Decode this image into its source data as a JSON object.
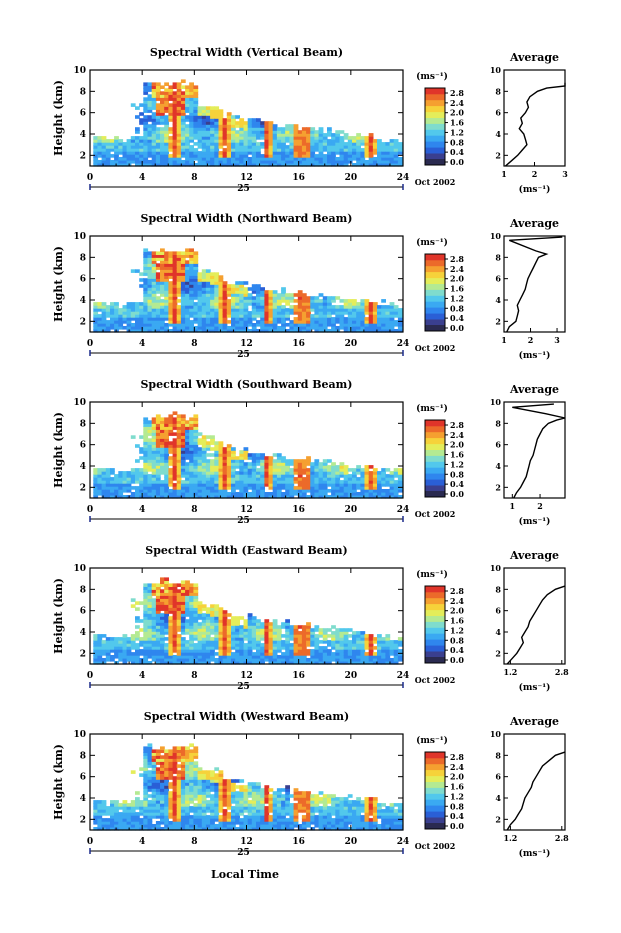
{
  "figure": {
    "x_axis_label": "Local Time",
    "colorbar_unit": "(ms⁻¹)",
    "avg_title": "Average",
    "avg_unit": "(ms⁻¹)",
    "date_label": "Oct 2002",
    "day_label": "25",
    "y_axis_label": "Height (km)"
  },
  "colorbar_ticks": [
    "0.0",
    "0.4",
    "0.8",
    "1.2",
    "1.6",
    "2.0",
    "2.4",
    "2.8"
  ],
  "colormap": [
    "#3a3f8f",
    "#2a5fd6",
    "#2f86ee",
    "#3aa9f2",
    "#52c8ec",
    "#7fdccd",
    "#b4ea92",
    "#e4ed5a",
    "#f6d23a",
    "#f5a030",
    "#ec6a2a",
    "#e0352a"
  ],
  "chart_data": [
    {
      "type": "heatmap",
      "title": "Spectral Width (Vertical Beam)",
      "xlabel": "",
      "ylabel": "Height (km)",
      "xlim": [
        0,
        24
      ],
      "ylim": [
        1,
        10
      ],
      "x_ticks": [
        0,
        4,
        8,
        12,
        16,
        20,
        24
      ],
      "y_ticks": [
        2,
        4,
        6,
        8,
        10
      ],
      "colorbar": {
        "min": 0.0,
        "max": 3.0,
        "ticks": [
          0.0,
          0.4,
          0.8,
          1.2,
          1.6,
          2.0,
          2.4,
          2.8
        ]
      },
      "average_profile": {
        "title": "Average",
        "xlabel": "(ms⁻¹)",
        "x_ticks": [
          1,
          2,
          3
        ],
        "xlim": [
          1,
          3
        ],
        "y_ticks": [
          2,
          4,
          6,
          8,
          10
        ],
        "ylim": [
          1,
          10
        ],
        "width": [
          1.05,
          1.25,
          1.45,
          1.6,
          1.75,
          1.7,
          1.65,
          1.5,
          1.6,
          1.55,
          1.7,
          1.8,
          1.75,
          1.85,
          2.1,
          2.4,
          3.0,
          3.0
        ],
        "height": [
          1.0,
          1.5,
          2.0,
          2.5,
          3.0,
          3.5,
          4.0,
          4.5,
          5.0,
          5.5,
          6.0,
          6.5,
          7.0,
          7.5,
          8.0,
          8.3,
          8.5,
          8.8
        ]
      }
    },
    {
      "type": "heatmap",
      "title": "Spectral Width (Northward Beam)",
      "xlabel": "",
      "ylabel": "Height (km)",
      "xlim": [
        0,
        24
      ],
      "ylim": [
        1,
        10
      ],
      "x_ticks": [
        0,
        4,
        8,
        12,
        16,
        20,
        24
      ],
      "y_ticks": [
        2,
        4,
        6,
        8,
        10
      ],
      "colorbar": {
        "min": 0.0,
        "max": 3.0,
        "ticks": [
          0.0,
          0.4,
          0.8,
          1.2,
          1.6,
          2.0,
          2.4,
          2.8
        ]
      },
      "average_profile": {
        "title": "Average",
        "xlabel": "(ms⁻¹)",
        "x_ticks": [
          1,
          2,
          3
        ],
        "xlim": [
          1,
          3.3
        ],
        "y_ticks": [
          2,
          4,
          6,
          8,
          10
        ],
        "ylim": [
          1,
          10
        ],
        "width": [
          1.1,
          1.2,
          1.45,
          1.5,
          1.55,
          1.5,
          1.6,
          1.7,
          1.8,
          1.85,
          1.9,
          2.0,
          2.1,
          2.2,
          2.3,
          2.6,
          2.2,
          1.2,
          3.2
        ],
        "height": [
          1.0,
          1.5,
          2.0,
          2.5,
          3.0,
          3.5,
          4.0,
          4.5,
          5.0,
          5.5,
          6.0,
          6.5,
          7.0,
          7.5,
          8.0,
          8.3,
          8.6,
          9.6,
          9.9
        ]
      }
    },
    {
      "type": "heatmap",
      "title": "Spectral Width (Southward Beam)",
      "xlabel": "",
      "ylabel": "Height (km)",
      "xlim": [
        0,
        24
      ],
      "ylim": [
        1,
        10
      ],
      "x_ticks": [
        0,
        4,
        8,
        12,
        16,
        20,
        24
      ],
      "y_ticks": [
        2,
        4,
        6,
        8,
        10
      ],
      "colorbar": {
        "min": 0.0,
        "max": 3.0,
        "ticks": [
          0.0,
          0.4,
          0.8,
          1.2,
          1.6,
          2.0,
          2.4,
          2.8
        ]
      },
      "average_profile": {
        "title": "Average",
        "xlabel": "(ms⁻¹)",
        "x_ticks": [
          1,
          2
        ],
        "xlim": [
          0.7,
          2.9
        ],
        "y_ticks": [
          2,
          4,
          6,
          8,
          10
        ],
        "ylim": [
          1,
          10
        ],
        "width": [
          1.05,
          1.15,
          1.3,
          1.4,
          1.5,
          1.55,
          1.6,
          1.65,
          1.75,
          1.8,
          1.85,
          1.9,
          2.0,
          2.1,
          2.3,
          2.6,
          2.9,
          2.2,
          1.0,
          2.5
        ],
        "height": [
          1.0,
          1.5,
          2.0,
          2.5,
          3.0,
          3.5,
          4.0,
          4.5,
          5.0,
          5.5,
          6.0,
          6.5,
          7.0,
          7.5,
          8.0,
          8.3,
          8.5,
          8.9,
          9.5,
          9.8
        ]
      }
    },
    {
      "type": "heatmap",
      "title": "Spectral Width (Eastward Beam)",
      "xlabel": "",
      "ylabel": "Height (km)",
      "xlim": [
        0,
        24
      ],
      "ylim": [
        1,
        10
      ],
      "x_ticks": [
        0,
        4,
        8,
        12,
        16,
        20,
        24
      ],
      "y_ticks": [
        2,
        4,
        6,
        8,
        10
      ],
      "colorbar": {
        "min": 0.0,
        "max": 3.0,
        "ticks": [
          0.0,
          0.4,
          0.8,
          1.2,
          1.6,
          2.0,
          2.4,
          2.8
        ]
      },
      "average_profile": {
        "title": "Average",
        "xlabel": "(ms⁻¹)",
        "x_ticks": [
          1.2,
          2.8
        ],
        "xlim": [
          1.0,
          2.9
        ],
        "y_ticks": [
          2,
          4,
          6,
          8,
          10
        ],
        "ylim": [
          1,
          10
        ],
        "width": [
          1.1,
          1.25,
          1.4,
          1.5,
          1.6,
          1.55,
          1.65,
          1.75,
          1.8,
          1.9,
          2.0,
          2.1,
          2.2,
          2.35,
          2.6,
          2.9
        ],
        "height": [
          1.0,
          1.5,
          2.0,
          2.5,
          3.0,
          3.5,
          4.0,
          4.5,
          5.0,
          5.5,
          6.0,
          6.5,
          7.0,
          7.5,
          8.0,
          8.3
        ]
      }
    },
    {
      "type": "heatmap",
      "title": "Spectral Width (Westward Beam)",
      "xlabel": "Local Time",
      "ylabel": "Height (km)",
      "xlim": [
        0,
        24
      ],
      "ylim": [
        1,
        10
      ],
      "x_ticks": [
        0,
        4,
        8,
        12,
        16,
        20,
        24
      ],
      "y_ticks": [
        2,
        4,
        6,
        8,
        10
      ],
      "colorbar": {
        "min": 0.0,
        "max": 3.0,
        "ticks": [
          0.0,
          0.4,
          0.8,
          1.2,
          1.6,
          2.0,
          2.4,
          2.8
        ]
      },
      "average_profile": {
        "title": "Average",
        "xlabel": "(ms⁻¹)",
        "x_ticks": [
          1.2,
          2.8
        ],
        "xlim": [
          1.0,
          2.9
        ],
        "y_ticks": [
          2,
          4,
          6,
          8,
          10
        ],
        "ylim": [
          1,
          10
        ],
        "width": [
          1.1,
          1.2,
          1.35,
          1.45,
          1.55,
          1.6,
          1.65,
          1.75,
          1.85,
          1.9,
          2.0,
          2.1,
          2.2,
          2.4,
          2.6,
          2.9
        ],
        "height": [
          1.0,
          1.5,
          2.0,
          2.5,
          3.0,
          3.5,
          4.0,
          4.5,
          5.0,
          5.5,
          6.0,
          6.5,
          7.0,
          7.5,
          8.0,
          8.3
        ]
      }
    }
  ]
}
